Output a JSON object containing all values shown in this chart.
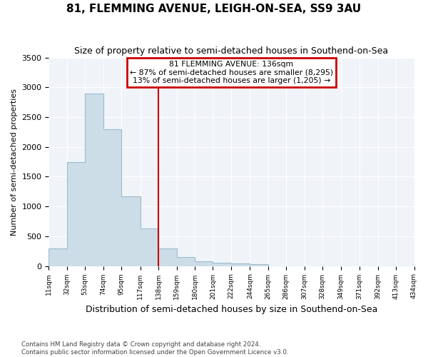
{
  "title": "81, FLEMMING AVENUE, LEIGH-ON-SEA, SS9 3AU",
  "subtitle": "Size of property relative to semi-detached houses in Southend-on-Sea",
  "xlabel": "Distribution of semi-detached houses by size in Southend-on-Sea",
  "ylabel": "Number of semi-detached properties",
  "footnote": "Contains HM Land Registry data © Crown copyright and database right 2024.\nContains public sector information licensed under the Open Government Licence v3.0.",
  "bin_edges": [
    11,
    32,
    53,
    74,
    95,
    117,
    138,
    159,
    180,
    201,
    222,
    244,
    265,
    286,
    307,
    328,
    349,
    371,
    392,
    413,
    434
  ],
  "bar_heights": [
    300,
    1750,
    2900,
    2300,
    1175,
    625,
    300,
    150,
    75,
    50,
    40,
    30,
    0,
    0,
    0,
    0,
    0,
    0,
    0,
    0
  ],
  "bar_color": "#ccdde8",
  "bar_edge_color": "#9bbccc",
  "property_line_x": 138,
  "ylim": [
    0,
    3500
  ],
  "xlim": [
    11,
    434
  ],
  "xtick_labels": [
    "11sqm",
    "32sqm",
    "53sqm",
    "74sqm",
    "95sqm",
    "117sqm",
    "138sqm",
    "159sqm",
    "180sqm",
    "201sqm",
    "222sqm",
    "244sqm",
    "265sqm",
    "286sqm",
    "307sqm",
    "328sqm",
    "349sqm",
    "371sqm",
    "392sqm",
    "413sqm",
    "434sqm"
  ],
  "xtick_positions": [
    11,
    32,
    53,
    74,
    95,
    117,
    138,
    159,
    180,
    201,
    222,
    244,
    265,
    286,
    307,
    328,
    349,
    371,
    392,
    413,
    434
  ],
  "annotation_box_edge_color": "#cc0000",
  "annotation_text_line1": "81 FLEMMING AVENUE: 136sqm",
  "annotation_text_line2": "← 87% of semi-detached houses are smaller (8,295)",
  "annotation_text_line3": "13% of semi-detached houses are larger (1,205) →",
  "title_fontsize": 11,
  "subtitle_fontsize": 9,
  "ylabel_fontsize": 8,
  "xlabel_fontsize": 9
}
